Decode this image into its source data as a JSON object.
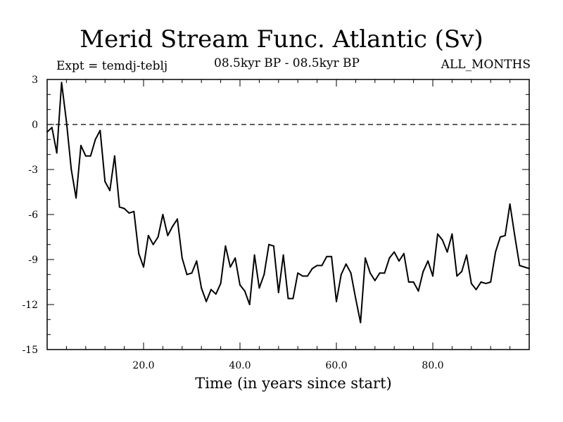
{
  "chart_data": {
    "type": "line",
    "title": "Merid Stream Func. Atlantic (Sv)",
    "subtitle_left": "Expt = temdj-teblj",
    "subtitle_center": "08.5kyr BP - 08.5kyr BP",
    "subtitle_right": "ALL_MONTHS",
    "xlabel": "Time (in years since start)",
    "ylabel": "",
    "xlim": [
      0,
      100
    ],
    "ylim": [
      -15,
      3
    ],
    "xticks": [
      20,
      40,
      60,
      80
    ],
    "xtick_labels": [
      "20.0",
      "40.0",
      "60.0",
      "80.0"
    ],
    "yticks": [
      3,
      0,
      -3,
      -6,
      -9,
      -12,
      -15
    ],
    "ytick_labels": [
      "3",
      "0",
      "-3",
      "-6",
      "-9",
      "-12",
      "-15"
    ],
    "reference_line": {
      "y": 0,
      "style": "dashed"
    },
    "series": [
      {
        "name": "Merid Stream Func. Atlantic",
        "x": [
          0,
          1,
          2,
          3,
          4,
          5,
          6,
          7,
          8,
          9,
          10,
          11,
          12,
          13,
          14,
          15,
          16,
          17,
          18,
          19,
          20,
          21,
          22,
          23,
          24,
          25,
          26,
          27,
          28,
          29,
          30,
          31,
          32,
          33,
          34,
          35,
          36,
          37,
          38,
          39,
          40,
          41,
          42,
          43,
          44,
          45,
          46,
          47,
          48,
          49,
          50,
          51,
          52,
          53,
          54,
          55,
          56,
          57,
          58,
          59,
          60,
          61,
          62,
          63,
          64,
          65,
          66,
          67,
          68,
          69,
          70,
          71,
          72,
          73,
          74,
          75,
          76,
          77,
          78,
          79,
          80,
          81,
          82,
          83,
          84,
          85,
          86,
          87,
          88,
          89,
          90,
          91,
          92,
          93,
          94,
          95,
          96,
          97,
          98,
          99,
          100
        ],
        "values": [
          -0.5,
          -0.2,
          -1.9,
          2.8,
          0.2,
          -3.0,
          -4.9,
          -1.4,
          -2.1,
          -2.1,
          -1.0,
          -0.4,
          -3.8,
          -4.4,
          -2.1,
          -5.5,
          -5.6,
          -5.9,
          -5.8,
          -8.6,
          -9.5,
          -7.4,
          -8.0,
          -7.5,
          -6.0,
          -7.4,
          -6.8,
          -6.3,
          -8.9,
          -10.0,
          -9.9,
          -9.1,
          -10.9,
          -11.8,
          -11.0,
          -11.3,
          -10.6,
          -8.1,
          -9.5,
          -8.9,
          -10.7,
          -11.1,
          -12.0,
          -8.7,
          -10.9,
          -10.0,
          -8.0,
          -8.1,
          -11.2,
          -8.7,
          -11.6,
          -11.6,
          -9.9,
          -10.1,
          -10.1,
          -9.6,
          -9.4,
          -9.4,
          -8.8,
          -8.8,
          -11.8,
          -10.0,
          -9.3,
          -9.9,
          -11.6,
          -13.2,
          -8.9,
          -9.9,
          -10.4,
          -9.9,
          -9.9,
          -8.9,
          -8.5,
          -9.1,
          -8.6,
          -10.5,
          -10.5,
          -11.1,
          -9.8,
          -9.1,
          -10.1,
          -7.3,
          -7.7,
          -8.5,
          -7.3,
          -10.1,
          -9.8,
          -8.7,
          -10.6,
          -11.0,
          -10.5,
          -10.6,
          -10.5,
          -8.5,
          -7.5,
          -7.4,
          -5.3,
          -7.4,
          -9.4,
          -9.5,
          -9.6
        ]
      }
    ]
  }
}
